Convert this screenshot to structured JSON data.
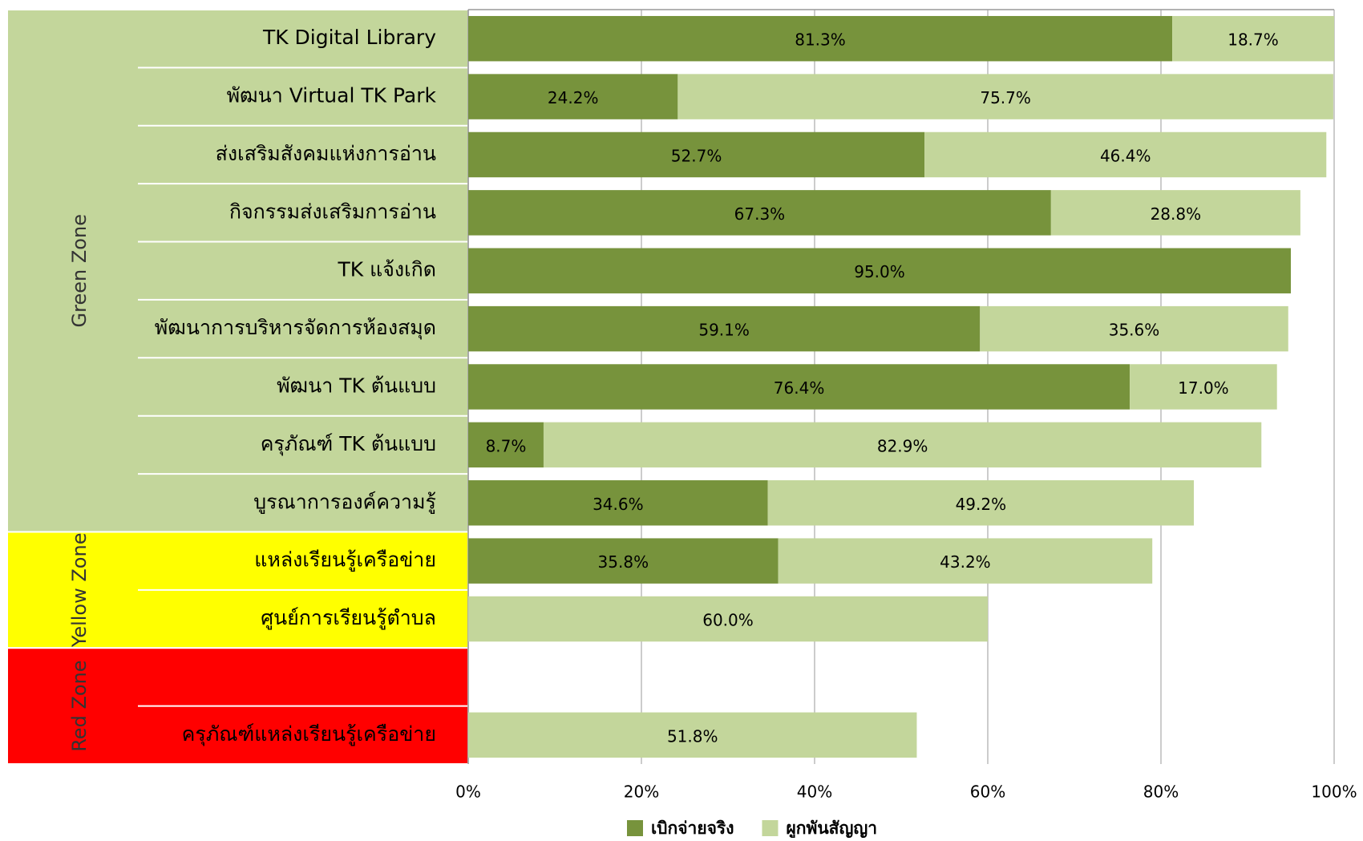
{
  "chart_data": {
    "type": "stacked-barh",
    "categories": [
      "TK Digital Library",
      "พัฒนา Virtual TK Park",
      "ส่งเสริมสังคมแห่งการอ่าน",
      "กิจกรรมส่งเสริมการอ่าน",
      "TK แจ้งเกิด",
      "พัฒนาการบริหารจัดการห้องสมุด",
      "พัฒนา TK ต้นแบบ",
      "ครุภัณฑ์ TK ต้นแบบ",
      "บูรณาการองค์ความรู้",
      "แหล่งเรียนรู้เครือข่าย",
      "ศูนย์การเรียนรู้ตำบล",
      null,
      "ครุภัณฑ์แหล่งเรียนรู้เครือข่าย"
    ],
    "series": [
      {
        "name": "เบิกจ่ายจริง",
        "color": "#77933c",
        "values": [
          81.3,
          24.2,
          52.7,
          67.3,
          95.0,
          59.1,
          76.4,
          8.7,
          34.6,
          35.8,
          null,
          null,
          null
        ],
        "value_labels": [
          "81.3%",
          "24.2%",
          "52.7%",
          "67.3%",
          "95.0%",
          "59.1%",
          "76.4%",
          "8.7%",
          "34.6%",
          "35.8%",
          null,
          null,
          null
        ]
      },
      {
        "name": "ผูกพันสัญญา",
        "color": "#c3d69b",
        "values": [
          18.7,
          75.7,
          46.4,
          28.8,
          null,
          35.6,
          17.0,
          82.9,
          49.2,
          43.2,
          60.0,
          null,
          51.8
        ],
        "value_labels": [
          "18.7%",
          "75.7%",
          "46.4%",
          "28.8%",
          null,
          "35.6%",
          "17.0%",
          "82.9%",
          "49.2%",
          "43.2%",
          "60.0%",
          null,
          "51.8%"
        ]
      }
    ],
    "zones": [
      {
        "name": "Green Zone",
        "color": "#c3d69b",
        "rows": 9
      },
      {
        "name": "Yellow Zone",
        "color": "#ffff00",
        "rows": 2
      },
      {
        "name": "Red Zone",
        "color": "#ff0000",
        "rows": 2
      }
    ],
    "xlim": [
      0,
      100
    ],
    "xticks": [
      {
        "value": 0,
        "label": "0%"
      },
      {
        "value": 20,
        "label": "20%"
      },
      {
        "value": 40,
        "label": "40%"
      },
      {
        "value": 60,
        "label": "60%"
      },
      {
        "value": 80,
        "label": "80%"
      },
      {
        "value": 100,
        "label": "100%"
      }
    ],
    "grid": true,
    "legend": "bottom"
  }
}
